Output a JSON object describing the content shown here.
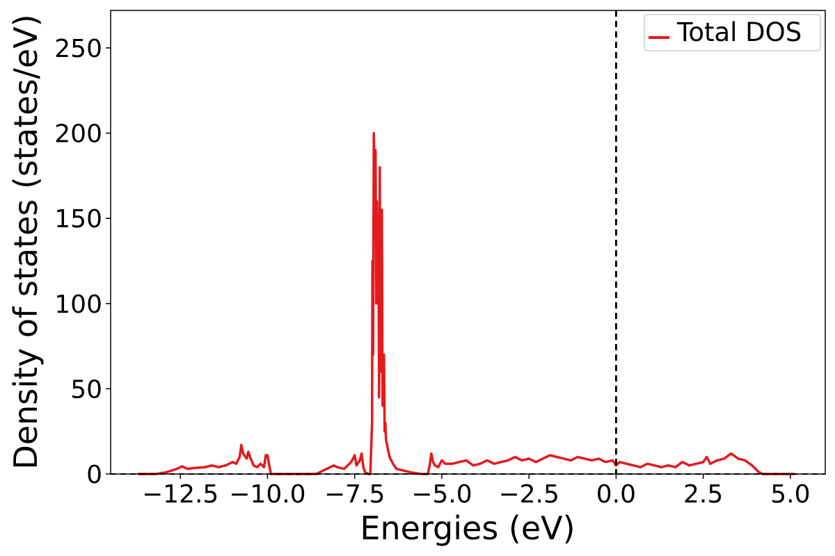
{
  "chart_data": {
    "type": "line",
    "xlabel": "Energies (eV)",
    "ylabel": "Density of states (states/eV)",
    "xlim": [
      -14.5,
      6.0
    ],
    "ylim": [
      0,
      272
    ],
    "x_ticks": [
      -12.5,
      -10.0,
      -7.5,
      -5.0,
      -2.5,
      0.0,
      2.5,
      5.0
    ],
    "x_tick_labels": [
      "−12.5",
      "−10.0",
      "−7.5",
      "−5.0",
      "−2.5",
      "0.0",
      "2.5",
      "5.0"
    ],
    "y_ticks": [
      0,
      50,
      100,
      150,
      200,
      250
    ],
    "y_tick_labels": [
      "0",
      "50",
      "100",
      "150",
      "200",
      "250"
    ],
    "fermi_level": 0.0,
    "grid": false,
    "legend_position": "top-right",
    "series": [
      {
        "name": "Total DOS",
        "color": "#e41a1c",
        "points": [
          [
            -13.7,
            0
          ],
          [
            -13.2,
            0
          ],
          [
            -12.9,
            1
          ],
          [
            -12.6,
            3
          ],
          [
            -12.45,
            4.5
          ],
          [
            -12.3,
            3
          ],
          [
            -12.1,
            3.5
          ],
          [
            -11.8,
            4
          ],
          [
            -11.6,
            5
          ],
          [
            -11.4,
            4
          ],
          [
            -11.2,
            5
          ],
          [
            -11.0,
            7
          ],
          [
            -10.9,
            6
          ],
          [
            -10.8,
            10
          ],
          [
            -10.75,
            17
          ],
          [
            -10.7,
            12
          ],
          [
            -10.6,
            9
          ],
          [
            -10.55,
            13
          ],
          [
            -10.5,
            10
          ],
          [
            -10.4,
            5
          ],
          [
            -10.3,
            4
          ],
          [
            -10.2,
            6
          ],
          [
            -10.1,
            4
          ],
          [
            -10.05,
            11
          ],
          [
            -10.0,
            11
          ],
          [
            -9.95,
            5
          ],
          [
            -9.9,
            0
          ],
          [
            -9.6,
            0
          ],
          [
            -9.0,
            0
          ],
          [
            -8.6,
            0
          ],
          [
            -8.5,
            1
          ],
          [
            -8.3,
            3
          ],
          [
            -8.1,
            5
          ],
          [
            -8.0,
            4
          ],
          [
            -7.8,
            3
          ],
          [
            -7.6,
            7
          ],
          [
            -7.5,
            11
          ],
          [
            -7.45,
            5
          ],
          [
            -7.35,
            8
          ],
          [
            -7.3,
            12
          ],
          [
            -7.25,
            4
          ],
          [
            -7.2,
            1
          ],
          [
            -7.1,
            0
          ],
          [
            -7.05,
            0
          ],
          [
            -7.0,
            30
          ],
          [
            -6.99,
            125
          ],
          [
            -6.97,
            70
          ],
          [
            -6.95,
            200
          ],
          [
            -6.93,
            180
          ],
          [
            -6.92,
            140
          ],
          [
            -6.9,
            190
          ],
          [
            -6.88,
            100
          ],
          [
            -6.86,
            160
          ],
          [
            -6.84,
            130
          ],
          [
            -6.82,
            150
          ],
          [
            -6.8,
            45
          ],
          [
            -6.78,
            180
          ],
          [
            -6.76,
            60
          ],
          [
            -6.74,
            120
          ],
          [
            -6.72,
            155
          ],
          [
            -6.7,
            40
          ],
          [
            -6.68,
            40
          ],
          [
            -6.66,
            70
          ],
          [
            -6.64,
            25
          ],
          [
            -6.62,
            30
          ],
          [
            -6.6,
            20
          ],
          [
            -6.5,
            10
          ],
          [
            -6.4,
            6
          ],
          [
            -6.3,
            3
          ],
          [
            -6.1,
            2
          ],
          [
            -5.9,
            1
          ],
          [
            -5.6,
            0
          ],
          [
            -5.4,
            0
          ],
          [
            -5.35,
            5
          ],
          [
            -5.3,
            12
          ],
          [
            -5.25,
            7
          ],
          [
            -5.2,
            5
          ],
          [
            -5.1,
            4
          ],
          [
            -5.0,
            8
          ],
          [
            -4.9,
            6
          ],
          [
            -4.7,
            6
          ],
          [
            -4.5,
            7
          ],
          [
            -4.3,
            8
          ],
          [
            -4.1,
            5
          ],
          [
            -3.9,
            6
          ],
          [
            -3.7,
            8
          ],
          [
            -3.5,
            6
          ],
          [
            -3.3,
            7
          ],
          [
            -3.1,
            8
          ],
          [
            -2.9,
            10
          ],
          [
            -2.7,
            8
          ],
          [
            -2.5,
            9
          ],
          [
            -2.3,
            7
          ],
          [
            -2.1,
            9
          ],
          [
            -1.9,
            11
          ],
          [
            -1.7,
            10
          ],
          [
            -1.5,
            9
          ],
          [
            -1.3,
            8
          ],
          [
            -1.1,
            10
          ],
          [
            -0.9,
            9
          ],
          [
            -0.7,
            8
          ],
          [
            -0.5,
            9
          ],
          [
            -0.3,
            7
          ],
          [
            -0.1,
            8
          ],
          [
            0.0,
            5
          ],
          [
            0.1,
            7
          ],
          [
            0.3,
            6
          ],
          [
            0.5,
            5
          ],
          [
            0.7,
            4
          ],
          [
            0.9,
            6
          ],
          [
            1.1,
            5
          ],
          [
            1.3,
            4
          ],
          [
            1.5,
            5
          ],
          [
            1.7,
            4
          ],
          [
            1.9,
            7
          ],
          [
            2.1,
            5
          ],
          [
            2.3,
            6
          ],
          [
            2.5,
            7
          ],
          [
            2.6,
            10
          ],
          [
            2.7,
            6
          ],
          [
            2.9,
            8
          ],
          [
            3.1,
            9
          ],
          [
            3.3,
            12
          ],
          [
            3.5,
            9
          ],
          [
            3.7,
            8
          ],
          [
            3.9,
            5
          ],
          [
            4.0,
            3
          ],
          [
            4.1,
            1
          ],
          [
            4.2,
            0
          ],
          [
            4.6,
            0
          ],
          [
            5.1,
            0
          ]
        ]
      }
    ]
  },
  "legend": {
    "label": "Total DOS"
  }
}
